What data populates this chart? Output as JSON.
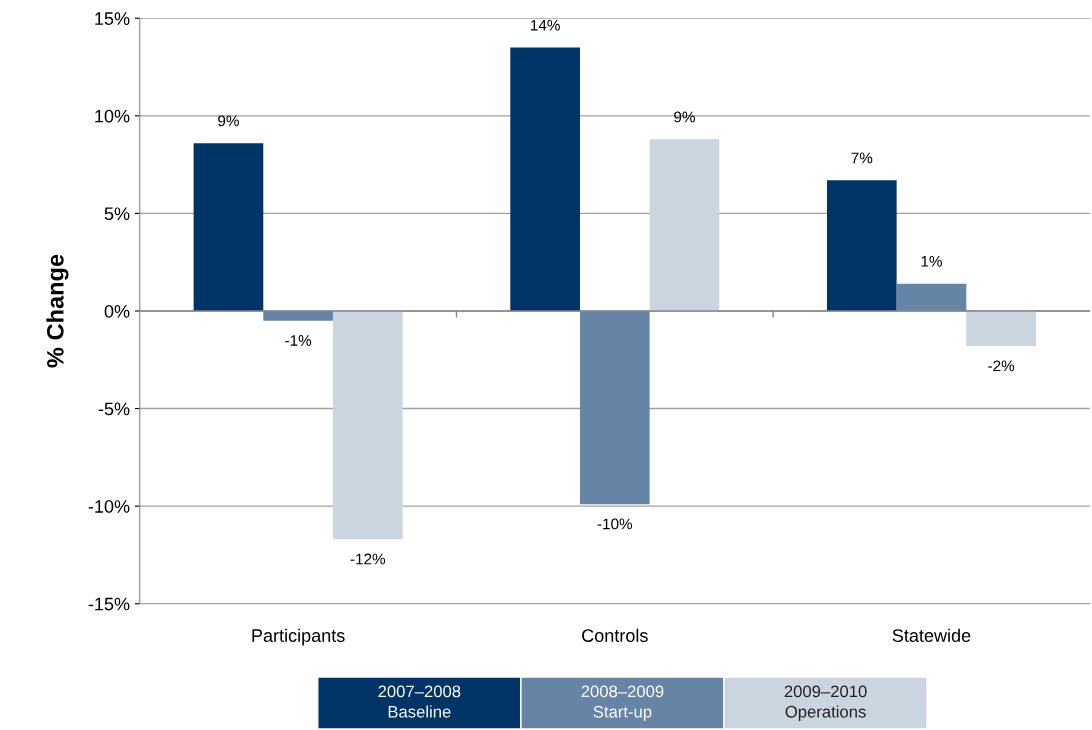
{
  "chart_data": {
    "type": "bar",
    "ylabel": "% Change",
    "categories": [
      "Participants",
      "Controls",
      "Statewide"
    ],
    "series": [
      {
        "name": "2007–2008\nBaseline",
        "color": "#003366",
        "values": [
          8.6,
          13.5,
          6.7
        ],
        "value_labels": [
          "9%",
          "14%",
          "7%"
        ]
      },
      {
        "name": "2008–2009\nStart-up",
        "color": "#6685a6",
        "values": [
          -0.5,
          -9.9,
          1.4
        ],
        "value_labels": [
          "-1%",
          "-10%",
          "1%"
        ]
      },
      {
        "name": "2009–2010\nOperations",
        "color": "#cbd5e0",
        "values": [
          -11.7,
          8.8,
          -1.8
        ],
        "value_labels": [
          "-12%",
          "9%",
          "-2%"
        ]
      }
    ],
    "ylim": [
      -15,
      15
    ],
    "yticks": [
      {
        "value": -15,
        "label": "-15%"
      },
      {
        "value": -10,
        "label": "-10%"
      },
      {
        "value": -5,
        "label": "-5%"
      },
      {
        "value": 0,
        "label": "0%"
      },
      {
        "value": 5,
        "label": "5%"
      },
      {
        "value": 10,
        "label": "10%"
      },
      {
        "value": 15,
        "label": "15%"
      }
    ],
    "grid": "y",
    "legend": "bottom"
  }
}
